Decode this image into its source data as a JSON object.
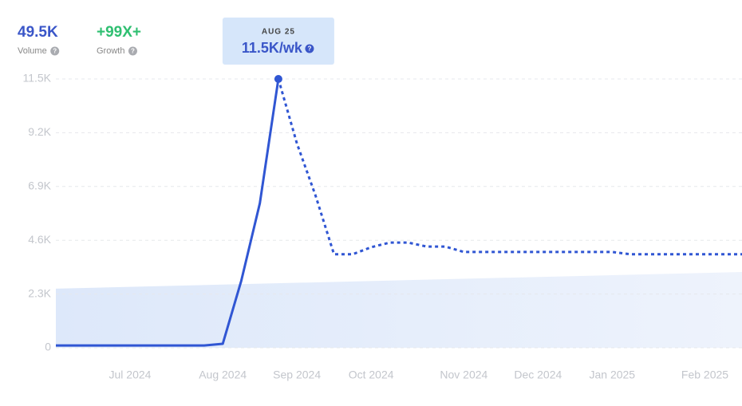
{
  "header": {
    "stats": [
      {
        "value": "49.5K",
        "label": "Volume",
        "color": "#3a56c8"
      },
      {
        "value": "+99X+",
        "label": "Growth",
        "color": "#2fbf71"
      }
    ],
    "tooltip": {
      "date": "AUG 25",
      "value": "11.5K/wk"
    }
  },
  "chart_data": {
    "type": "line",
    "categories": [
      null,
      null,
      null,
      null,
      "Jul 2024",
      null,
      null,
      null,
      null,
      "Aug 2024",
      null,
      null,
      null,
      "Sep 2024",
      null,
      null,
      null,
      "Oct 2024",
      null,
      null,
      null,
      null,
      "Nov 2024",
      null,
      null,
      null,
      "Dec 2024",
      null,
      null,
      null,
      "Jan 2025",
      null,
      null,
      null,
      null,
      "Feb 2025",
      null,
      null
    ],
    "series": [
      {
        "color": "#3056d3",
        "style": "solid",
        "values": [
          100,
          100,
          100,
          100,
          100,
          100,
          100,
          100,
          100,
          170,
          2870,
          6180,
          11500,
          null,
          null,
          null,
          null,
          null,
          null,
          null,
          null,
          null,
          null,
          null,
          null,
          null,
          null,
          null,
          null,
          null,
          null,
          null,
          null,
          null,
          null,
          null,
          null,
          null
        ]
      },
      {
        "color": "#3056d3",
        "style": "dotted",
        "values": [
          null,
          null,
          null,
          null,
          null,
          null,
          null,
          null,
          null,
          null,
          null,
          null,
          11500,
          8740,
          6520,
          4000,
          4000,
          4300,
          4500,
          4500,
          4330,
          4330,
          4100,
          4100,
          4100,
          4100,
          4100,
          4100,
          4100,
          4100,
          4100,
          4000,
          4000,
          4000,
          4000,
          4000,
          4000,
          4000
        ]
      }
    ],
    "trend": {
      "color": "#e4edfb",
      "values": [
        2530,
        3240
      ]
    },
    "ylim": [
      0,
      11500
    ],
    "yticks": [
      0,
      {
        "value": 2300,
        "label": "2.3K"
      },
      {
        "value": 4600,
        "label": "4.6K"
      },
      {
        "value": 6900,
        "label": "6.9K"
      },
      {
        "value": 9200,
        "label": "9.2K"
      },
      {
        "value": 11500,
        "label": "11.5K"
      }
    ],
    "grid": true,
    "highlight": 12
  }
}
